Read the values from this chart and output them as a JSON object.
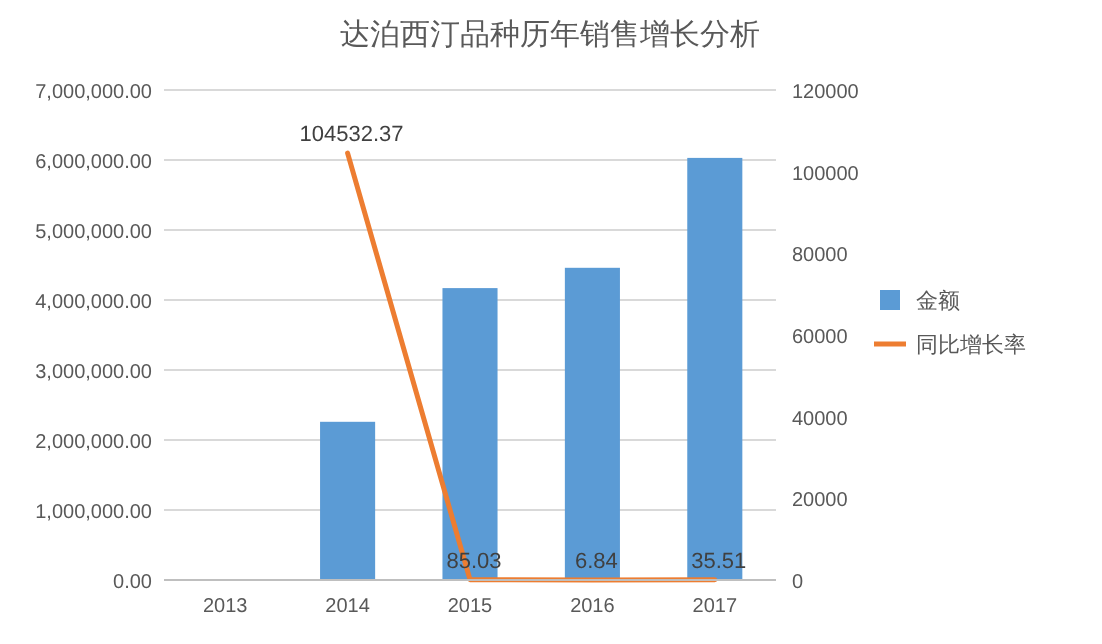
{
  "chart_data": {
    "type": "bar",
    "title": "达泊西汀品种历年销售增长分析",
    "categories": [
      "2013",
      "2014",
      "2015",
      "2016",
      "2017"
    ],
    "series": [
      {
        "name": "金额",
        "color": "#5b9bd5",
        "values": [
          0,
          2260000,
          4170000,
          4460000,
          6030000
        ]
      },
      {
        "name": "同比增长率",
        "type": "line",
        "axis": "y2",
        "color": "#ed7d31",
        "values": [
          null,
          104532.37,
          85.03,
          6.84,
          35.51
        ],
        "value_labels": [
          null,
          "104532.37",
          "85.03",
          "6.84",
          "35.51"
        ]
      }
    ],
    "ylim": [
      0,
      7000000
    ],
    "yticks": [
      {
        "value": 0,
        "label": "0.00"
      },
      {
        "value": 1000000,
        "label": "1,000,000.00"
      },
      {
        "value": 2000000,
        "label": "2,000,000.00"
      },
      {
        "value": 3000000,
        "label": "3,000,000.00"
      },
      {
        "value": 4000000,
        "label": "4,000,000.00"
      },
      {
        "value": 5000000,
        "label": "5,000,000.00"
      },
      {
        "value": 6000000,
        "label": "6,000,000.00"
      },
      {
        "value": 7000000,
        "label": "7,000,000.00"
      }
    ],
    "y2lim": [
      0,
      120000
    ],
    "y2ticks": [
      0,
      20000,
      40000,
      60000,
      80000,
      100000,
      120000
    ],
    "grid": "y",
    "legend": "right"
  }
}
